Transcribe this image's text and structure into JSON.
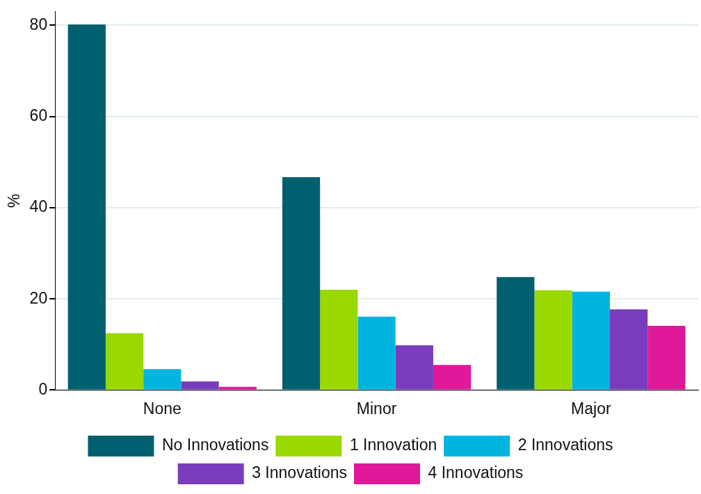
{
  "chart_data": {
    "type": "bar",
    "ylabel": "%",
    "categories": [
      "None",
      "Minor",
      "Major"
    ],
    "series": [
      {
        "name": "No Innovations",
        "color": "#006070",
        "values": [
          80.2,
          46.7,
          24.8
        ]
      },
      {
        "name": "1 Innovation",
        "color": "#99d800",
        "values": [
          12.5,
          22.0,
          21.9
        ]
      },
      {
        "name": "2 Innovations",
        "color": "#00b4e0",
        "values": [
          4.6,
          16.1,
          21.6
        ]
      },
      {
        "name": "3 Innovations",
        "color": "#7a3cbe",
        "values": [
          1.9,
          9.8,
          17.7
        ]
      },
      {
        "name": "4 Innovations",
        "color": "#e0189a",
        "values": [
          0.7,
          5.5,
          14.1
        ]
      }
    ],
    "ylim": [
      0,
      83
    ],
    "yticks": [
      0,
      20,
      40,
      60,
      80
    ],
    "grid": "y",
    "legend": "bottom"
  }
}
